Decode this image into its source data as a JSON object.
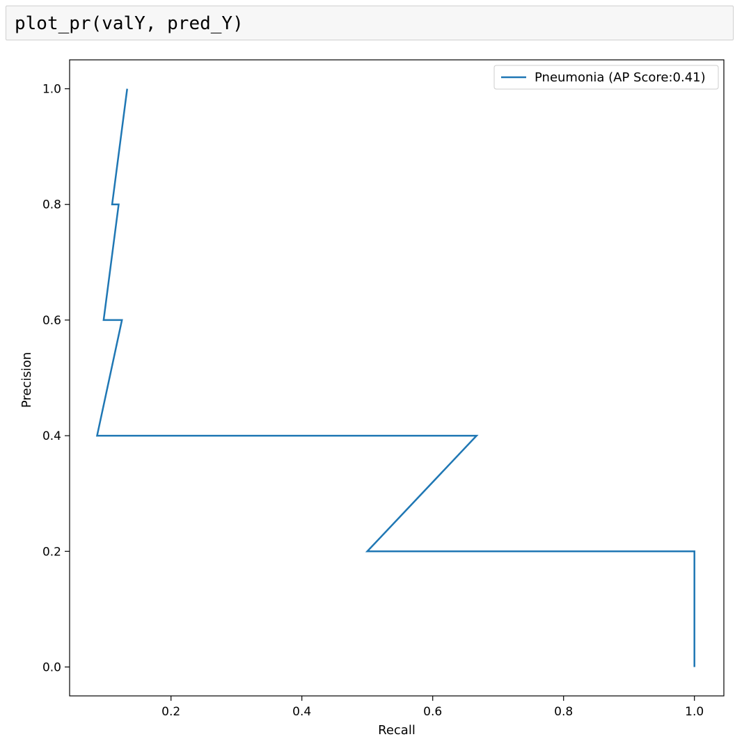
{
  "cell": {
    "code": "plot_pr(valY, pred_Y)"
  },
  "chart_data": {
    "type": "line",
    "title": "",
    "xlabel": "Recall",
    "ylabel": "Precision",
    "xlim": [
      0.045,
      1.045
    ],
    "ylim": [
      -0.05,
      1.05
    ],
    "xticks": [
      0.2,
      0.4,
      0.6,
      0.8,
      1.0
    ],
    "xtick_labels": [
      "0.2",
      "0.4",
      "0.6",
      "0.8",
      "1.0"
    ],
    "yticks": [
      0.0,
      0.2,
      0.4,
      0.6,
      0.8,
      1.0
    ],
    "ytick_labels": [
      "0.0",
      "0.2",
      "0.4",
      "0.6",
      "0.8",
      "1.0"
    ],
    "grid": false,
    "legend": "top-right",
    "series": [
      {
        "name": "Pneumonia (AP Score:0.41)",
        "color": "#1f77b4",
        "x": [
          1.0,
          1.0,
          0.5,
          0.667,
          0.087,
          0.125,
          0.097,
          0.12,
          0.11,
          0.133
        ],
        "y": [
          0.0,
          0.2,
          0.2,
          0.4,
          0.4,
          0.6,
          0.6,
          0.8,
          0.8,
          1.0
        ]
      }
    ]
  }
}
